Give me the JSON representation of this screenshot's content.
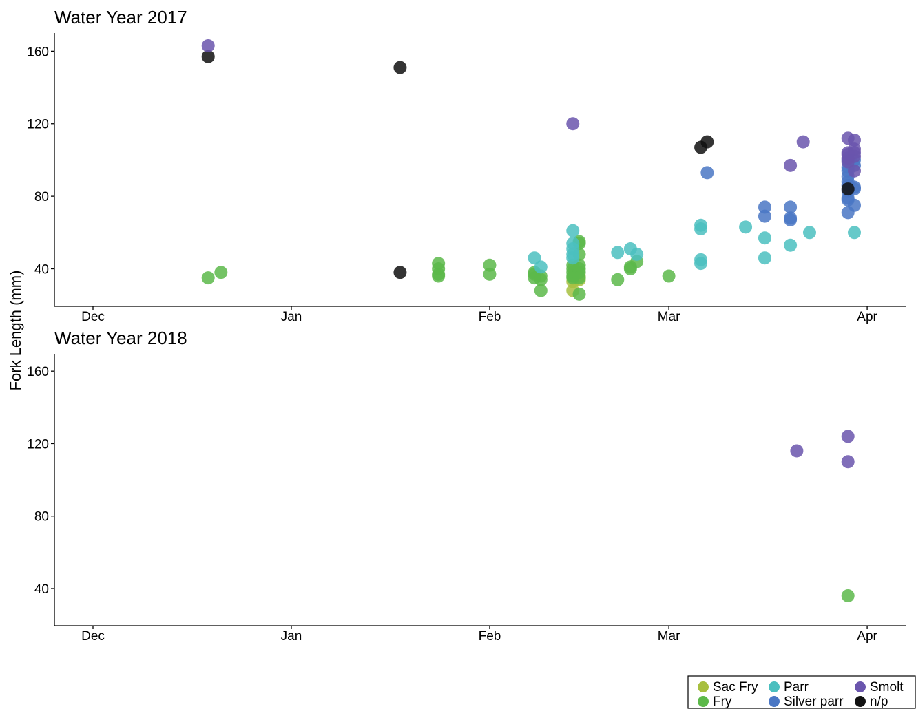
{
  "chart_data": {
    "type": "scatter",
    "ylabel": "Fork Length (mm)",
    "x_ticks": [
      "Dec",
      "Jan",
      "Feb",
      "Mar",
      "Apr"
    ],
    "y_ticks": [
      40,
      80,
      120,
      160
    ],
    "ylim": [
      20,
      170
    ],
    "legend": {
      "position": "bottom-right",
      "entries": [
        {
          "name": "Sac Fry",
          "color": "#a7bf3f"
        },
        {
          "name": "Fry",
          "color": "#5cb94a"
        },
        {
          "name": "Parr",
          "color": "#4bbfbf"
        },
        {
          "name": "Silver parr",
          "color": "#4a77c4"
        },
        {
          "name": "Smolt",
          "color": "#6a55ad"
        },
        {
          "name": "n/p",
          "color": "#111111"
        }
      ]
    },
    "panels": [
      {
        "title": "Water Year 2017",
        "series": [
          {
            "name": "Sac Fry",
            "points": [
              [
                "Feb 14",
                28
              ],
              [
                "Feb 14",
                33
              ],
              [
                "Feb 15",
                34
              ],
              [
                "Feb 15",
                36
              ]
            ]
          },
          {
            "name": "Fry",
            "points": [
              [
                "Dec 19",
                35
              ],
              [
                "Dec 21",
                38
              ],
              [
                "Jan 24",
                43
              ],
              [
                "Jan 24",
                40
              ],
              [
                "Jan 24",
                36
              ],
              [
                "Jan 24",
                37
              ],
              [
                "Feb 1",
                42
              ],
              [
                "Feb 1",
                37
              ],
              [
                "Feb 8",
                35
              ],
              [
                "Feb 8",
                37
              ],
              [
                "Feb 8",
                38
              ],
              [
                "Feb 9",
                36
              ],
              [
                "Feb 9",
                34
              ],
              [
                "Feb 9",
                28
              ],
              [
                "Feb 14",
                42
              ],
              [
                "Feb 14",
                40
              ],
              [
                "Feb 14",
                38
              ],
              [
                "Feb 14",
                36
              ],
              [
                "Feb 14",
                35
              ],
              [
                "Feb 15",
                55
              ],
              [
                "Feb 15",
                54
              ],
              [
                "Feb 15",
                48
              ],
              [
                "Feb 15",
                42
              ],
              [
                "Feb 15",
                40
              ],
              [
                "Feb 15",
                38
              ],
              [
                "Feb 15",
                35
              ],
              [
                "Feb 15",
                26
              ],
              [
                "Feb 21",
                34
              ],
              [
                "Feb 23",
                41
              ],
              [
                "Feb 23",
                40
              ],
              [
                "Feb 24",
                44
              ],
              [
                "Mar 1",
                36
              ]
            ]
          },
          {
            "name": "Parr",
            "points": [
              [
                "Feb 8",
                46
              ],
              [
                "Feb 9",
                41
              ],
              [
                "Feb 14",
                61
              ],
              [
                "Feb 14",
                54
              ],
              [
                "Feb 14",
                51
              ],
              [
                "Feb 14",
                48
              ],
              [
                "Feb 14",
                46
              ],
              [
                "Feb 21",
                49
              ],
              [
                "Feb 23",
                51
              ],
              [
                "Feb 24",
                48
              ],
              [
                "Mar 6",
                64
              ],
              [
                "Mar 6",
                62
              ],
              [
                "Mar 6",
                45
              ],
              [
                "Mar 6",
                43
              ],
              [
                "Mar 13",
                63
              ],
              [
                "Mar 16",
                57
              ],
              [
                "Mar 16",
                46
              ],
              [
                "Mar 20",
                53
              ],
              [
                "Mar 23",
                60
              ],
              [
                "Mar 30",
                60
              ]
            ]
          },
          {
            "name": "Silver parr",
            "points": [
              [
                "Mar 7",
                93
              ],
              [
                "Mar 16",
                74
              ],
              [
                "Mar 16",
                69
              ],
              [
                "Mar 20",
                74
              ],
              [
                "Mar 20",
                68
              ],
              [
                "Mar 20",
                67
              ],
              [
                "Mar 29",
                100
              ],
              [
                "Mar 29",
                96
              ],
              [
                "Mar 29",
                94
              ],
              [
                "Mar 29",
                91
              ],
              [
                "Mar 29",
                88
              ],
              [
                "Mar 29",
                86
              ],
              [
                "Mar 29",
                83
              ],
              [
                "Mar 29",
                79
              ],
              [
                "Mar 29",
                78
              ],
              [
                "Mar 29",
                71
              ],
              [
                "Mar 30",
                100
              ],
              [
                "Mar 30",
                97
              ],
              [
                "Mar 30",
                85
              ],
              [
                "Mar 30",
                84
              ],
              [
                "Mar 30",
                75
              ]
            ]
          },
          {
            "name": "Smolt",
            "points": [
              [
                "Dec 19",
                163
              ],
              [
                "Feb 14",
                120
              ],
              [
                "Mar 20",
                97
              ],
              [
                "Mar 22",
                110
              ],
              [
                "Mar 29",
                112
              ],
              [
                "Mar 29",
                104
              ],
              [
                "Mar 29",
                103
              ],
              [
                "Mar 29",
                101
              ],
              [
                "Mar 29",
                99
              ],
              [
                "Mar 30",
                111
              ],
              [
                "Mar 30",
                106
              ],
              [
                "Mar 30",
                104
              ],
              [
                "Mar 30",
                102
              ],
              [
                "Mar 30",
                94
              ]
            ]
          },
          {
            "name": "n/p",
            "points": [
              [
                "Dec 19",
                157
              ],
              [
                "Jan 18",
                151
              ],
              [
                "Jan 18",
                38
              ],
              [
                "Mar 6",
                107
              ],
              [
                "Mar 7",
                110
              ],
              [
                "Mar 29",
                84
              ]
            ]
          }
        ]
      },
      {
        "title": "Water Year 2018",
        "series": [
          {
            "name": "Sac Fry",
            "points": []
          },
          {
            "name": "Fry",
            "points": [
              [
                "Mar 29",
                36
              ]
            ]
          },
          {
            "name": "Parr",
            "points": []
          },
          {
            "name": "Silver parr",
            "points": []
          },
          {
            "name": "Smolt",
            "points": [
              [
                "Mar 21",
                116
              ],
              [
                "Mar 29",
                124
              ],
              [
                "Mar 29",
                110
              ]
            ]
          },
          {
            "name": "n/p",
            "points": []
          }
        ]
      }
    ]
  }
}
